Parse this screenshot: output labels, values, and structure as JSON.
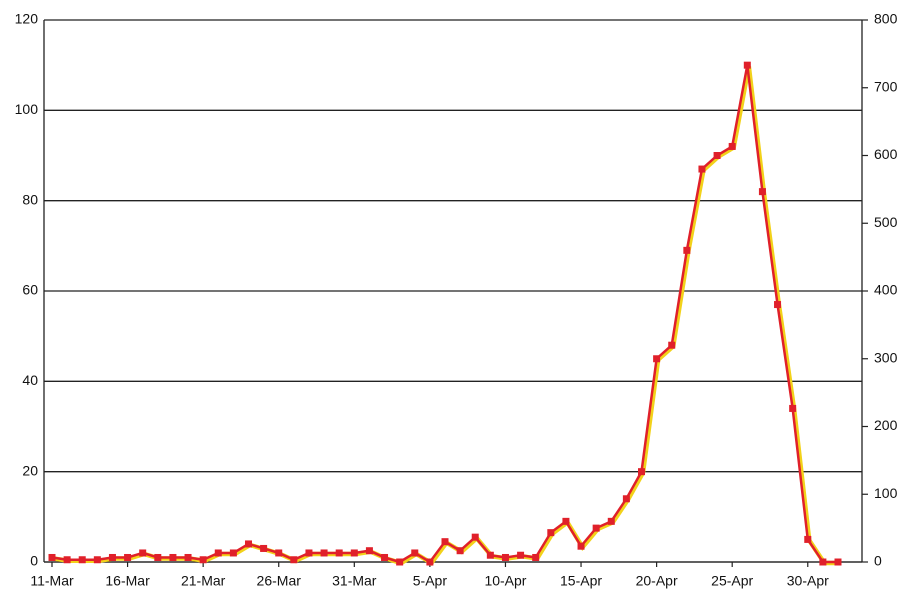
{
  "chart_data": {
    "type": "line",
    "categories": [
      "11-Mar",
      null,
      null,
      null,
      null,
      "16-Mar",
      null,
      null,
      null,
      null,
      "21-Mar",
      null,
      null,
      null,
      null,
      "26-Mar",
      null,
      null,
      null,
      null,
      "31-Mar",
      null,
      null,
      null,
      null,
      "5-Apr",
      null,
      null,
      null,
      null,
      "10-Apr",
      null,
      null,
      null,
      null,
      "15-Apr",
      null,
      null,
      null,
      null,
      "20-Apr",
      null,
      null,
      null,
      null,
      "25-Apr",
      null,
      null,
      null,
      null,
      "30-Apr",
      null,
      null
    ],
    "series": [
      {
        "color": "#e0202a",
        "outline_color": "#f2d21a",
        "values": [
          1,
          0.5,
          0.5,
          0.5,
          1,
          1,
          2,
          1,
          1,
          1,
          0.5,
          2,
          2,
          4,
          3,
          2,
          0.5,
          2,
          2,
          2,
          2,
          2.5,
          1,
          0,
          2,
          0,
          4.5,
          2.5,
          5.5,
          1.5,
          1,
          1.5,
          1,
          6.5,
          9,
          3.5,
          7.5,
          9,
          14,
          20,
          45,
          48,
          69,
          87,
          90,
          92,
          110,
          82,
          57,
          34,
          5,
          0,
          0
        ]
      }
    ],
    "ylim": [
      0,
      120
    ],
    "yticks": [
      0,
      20,
      40,
      60,
      80,
      100,
      120
    ],
    "y2lim": [
      0,
      800
    ],
    "y2ticks": [
      0,
      100,
      200,
      300,
      400,
      500,
      600,
      700,
      800
    ],
    "grid": true
  }
}
